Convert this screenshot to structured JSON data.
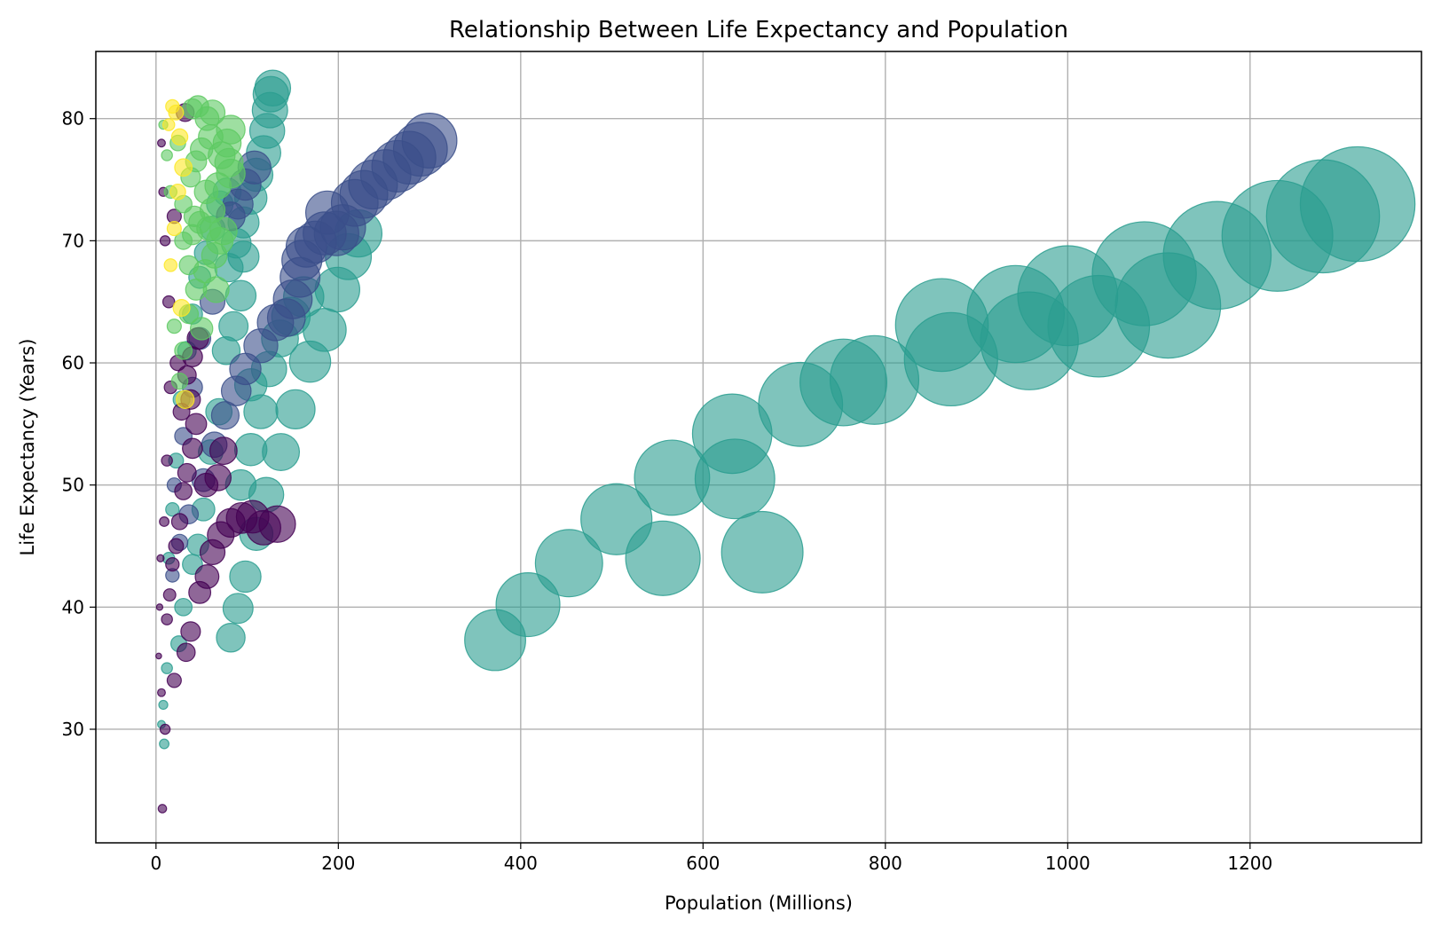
{
  "chart_data": {
    "type": "scatter",
    "title": "Relationship Between Life Expectancy and Population",
    "xlabel": "Population (Millions)",
    "ylabel": "Life Expectancy (Years)",
    "xlim": [
      -66,
      1388
    ],
    "ylim": [
      20.7,
      85.5
    ],
    "xticks": [
      0,
      200,
      400,
      600,
      800,
      1000,
      1200
    ],
    "yticks": [
      30,
      40,
      50,
      60,
      70,
      80
    ],
    "grid": true,
    "legend": "none",
    "marker_size_encodes": "population",
    "series": [
      {
        "color": "#2a9d8f",
        "points": [
          [
            372,
            37.3
          ],
          [
            408,
            40.2
          ],
          [
            453,
            43.6
          ],
          [
            505,
            47.2
          ],
          [
            556,
            44.0
          ],
          [
            566,
            50.6
          ],
          [
            632,
            54.2
          ],
          [
            635,
            50.5
          ],
          [
            665,
            44.5
          ],
          [
            707,
            56.6
          ],
          [
            754,
            58.4
          ],
          [
            788,
            58.6
          ],
          [
            862,
            63.1
          ],
          [
            872,
            60.3
          ],
          [
            943,
            64.0
          ],
          [
            958,
            61.8
          ],
          [
            1000,
            65.5
          ],
          [
            1034,
            63.0
          ],
          [
            1084,
            67.3
          ],
          [
            1110,
            64.7
          ],
          [
            1164,
            68.8
          ],
          [
            1230,
            70.4
          ],
          [
            1280,
            72.0
          ],
          [
            1318,
            73.0
          ],
          [
            82,
            37.5
          ],
          [
            90,
            39.9
          ],
          [
            98,
            42.5
          ],
          [
            110,
            46.0
          ],
          [
            121,
            49.2
          ],
          [
            137,
            52.7
          ],
          [
            153,
            56.2
          ],
          [
            169,
            60.1
          ],
          [
            185,
            62.7
          ],
          [
            199,
            66.0
          ],
          [
            211,
            68.7
          ],
          [
            222,
            70.6
          ],
          [
            126,
            82.0
          ],
          [
            128,
            82.5
          ],
          [
            125,
            80.7
          ],
          [
            122,
            79.0
          ],
          [
            118,
            77.2
          ],
          [
            110,
            75.4
          ],
          [
            104,
            73.5
          ],
          [
            96,
            71.5
          ],
          [
            88,
            69.8
          ],
          [
            80,
            67.8
          ],
          [
            93,
            65.5
          ],
          [
            85,
            63.0
          ],
          [
            77,
            61.0
          ],
          [
            104,
            58.2
          ],
          [
            115,
            56.0
          ],
          [
            104,
            52.9
          ],
          [
            93,
            50.0
          ],
          [
            124,
            59.5
          ],
          [
            136,
            62.0
          ],
          [
            148,
            63.8
          ],
          [
            162,
            65.4
          ],
          [
            96,
            68.7
          ],
          [
            69,
            56.0
          ],
          [
            60,
            52.7
          ],
          [
            52,
            48.0
          ],
          [
            46,
            45.1
          ],
          [
            40,
            43.5
          ],
          [
            30,
            40.0
          ],
          [
            25,
            37.0
          ],
          [
            12,
            35.0
          ],
          [
            8,
            32.0
          ],
          [
            6,
            30.4
          ],
          [
            9,
            28.8
          ],
          [
            14,
            44.0
          ],
          [
            18,
            48.0
          ],
          [
            22,
            52.0
          ],
          [
            28,
            57.0
          ],
          [
            34,
            61.0
          ],
          [
            40,
            64.0
          ],
          [
            48,
            67.0
          ],
          [
            55,
            69.0
          ],
          [
            62,
            71.0
          ],
          [
            70,
            73.0
          ],
          [
            78,
            74.0
          ]
        ]
      },
      {
        "color": "#3b4f8a",
        "points": [
          [
            300,
            78.2
          ],
          [
            290,
            77.5
          ],
          [
            278,
            76.8
          ],
          [
            265,
            76.1
          ],
          [
            252,
            75.4
          ],
          [
            238,
            74.6
          ],
          [
            228,
            73.8
          ],
          [
            218,
            73.1
          ],
          [
            188,
            72.3
          ],
          [
            205,
            71.1
          ],
          [
            198,
            70.6
          ],
          [
            185,
            70.6
          ],
          [
            175,
            69.9
          ],
          [
            165,
            69.5
          ],
          [
            160,
            68.4
          ],
          [
            158,
            67.0
          ],
          [
            150,
            65.2
          ],
          [
            143,
            63.7
          ],
          [
            131,
            63.3
          ],
          [
            115,
            61.4
          ],
          [
            98,
            59.5
          ],
          [
            88,
            57.7
          ],
          [
            76,
            55.7
          ],
          [
            64,
            53.3
          ],
          [
            52,
            50.4
          ],
          [
            36,
            47.6
          ],
          [
            26,
            45.3
          ],
          [
            18,
            42.6
          ],
          [
            108,
            76.0
          ],
          [
            98,
            74.6
          ],
          [
            90,
            73.0
          ],
          [
            82,
            72.0
          ],
          [
            62,
            65.0
          ],
          [
            48,
            62.0
          ],
          [
            40,
            58.0
          ],
          [
            30,
            54.0
          ],
          [
            20,
            50.0
          ]
        ]
      },
      {
        "color": "#440154",
        "points": [
          [
            133,
            46.8
          ],
          [
            118,
            46.5
          ],
          [
            106,
            47.4
          ],
          [
            94,
            47.3
          ],
          [
            82,
            46.9
          ],
          [
            71,
            45.9
          ],
          [
            62,
            44.5
          ],
          [
            56,
            42.5
          ],
          [
            48,
            41.2
          ],
          [
            38,
            38.0
          ],
          [
            33,
            36.3
          ],
          [
            20,
            34.0
          ],
          [
            7,
            23.5
          ],
          [
            10,
            30.0
          ],
          [
            6,
            33.0
          ],
          [
            12,
            39.0
          ],
          [
            15,
            41.0
          ],
          [
            18,
            43.5
          ],
          [
            22,
            45.0
          ],
          [
            26,
            47.0
          ],
          [
            30,
            49.5
          ],
          [
            34,
            51.0
          ],
          [
            40,
            53.0
          ],
          [
            44,
            55.0
          ],
          [
            38,
            57.0
          ],
          [
            34,
            59.0
          ],
          [
            40,
            60.5
          ],
          [
            46,
            62.0
          ],
          [
            68,
            50.6
          ],
          [
            74,
            52.8
          ],
          [
            55,
            50.0
          ],
          [
            28,
            56.0
          ],
          [
            24,
            60.0
          ],
          [
            14,
            65.0
          ],
          [
            10,
            70.0
          ],
          [
            8,
            74.0
          ],
          [
            6,
            78.0
          ],
          [
            32,
            80.5
          ],
          [
            20,
            72.0
          ],
          [
            16,
            58.0
          ],
          [
            12,
            52.0
          ],
          [
            9,
            47.0
          ],
          [
            5,
            44.0
          ],
          [
            4,
            40.0
          ],
          [
            3,
            36.0
          ]
        ]
      },
      {
        "color": "#5ec962",
        "points": [
          [
            82,
            79.1
          ],
          [
            78,
            78.0
          ],
          [
            80,
            76.4
          ],
          [
            82,
            75.5
          ],
          [
            62,
            80.5
          ],
          [
            56,
            80.0
          ],
          [
            46,
            81.0
          ],
          [
            40,
            80.8
          ],
          [
            60,
            78.5
          ],
          [
            50,
            77.5
          ],
          [
            44,
            76.5
          ],
          [
            38,
            75.2
          ],
          [
            55,
            74.0
          ],
          [
            62,
            72.5
          ],
          [
            48,
            71.5
          ],
          [
            40,
            70.5
          ],
          [
            30,
            70.0
          ],
          [
            58,
            71.0
          ],
          [
            70,
            70.0
          ],
          [
            64,
            68.8
          ],
          [
            54,
            67.5
          ],
          [
            44,
            66.0
          ],
          [
            50,
            62.8
          ],
          [
            36,
            64.0
          ],
          [
            30,
            61.0
          ],
          [
            26,
            58.5
          ],
          [
            20,
            63.0
          ],
          [
            16,
            74.0
          ],
          [
            12,
            77.0
          ],
          [
            8,
            79.5
          ],
          [
            24,
            78.0
          ],
          [
            30,
            73.0
          ],
          [
            36,
            68.0
          ],
          [
            42,
            72.0
          ],
          [
            66,
            66.0
          ],
          [
            74,
            70.8
          ],
          [
            68,
            74.5
          ],
          [
            72,
            77.0
          ]
        ]
      },
      {
        "color": "#fde725",
        "points": [
          [
            18,
            81.0
          ],
          [
            22,
            80.5
          ],
          [
            14,
            79.5
          ],
          [
            26,
            78.5
          ],
          [
            30,
            76.0
          ],
          [
            24,
            74.0
          ],
          [
            20,
            71.0
          ],
          [
            16,
            68.0
          ],
          [
            28,
            64.5
          ],
          [
            32,
            57.0
          ]
        ]
      }
    ]
  }
}
